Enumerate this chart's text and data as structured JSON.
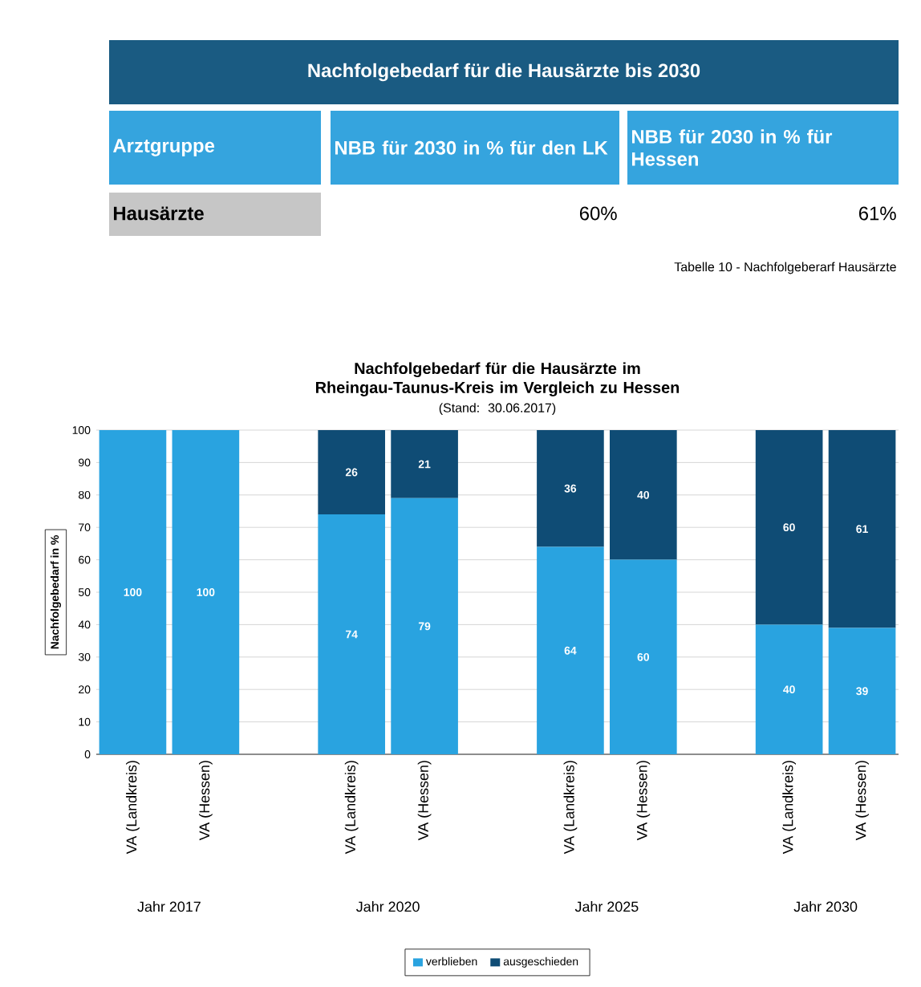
{
  "chart_data": [
    {
      "type": "other",
      "title": "Nachfolgebedarf für die Hausärzte bis 2030",
      "annotations": [
        "Arztgruppe",
        "NBB für 2030 in % für den LK",
        "NBB für 2030 in % für Hessen",
        "Hausärzte",
        "60%",
        "61%",
        "Tabelle 10 - Nachfolgeberarf Hausärzte"
      ]
    },
    {
      "type": "bar",
      "stacked": true,
      "title": "Nachfolgebedarf für die Hausärzte im Rheingau-Taunus-Kreis im Vergleich zu Hessen",
      "subtitle": "(Stand: 30.06.2017)",
      "ylabel": "Nachfolgebedarf in %",
      "categories": [
        "VA (Landkreis)",
        "VA (Hessen)",
        null,
        "VA (Landkreis)",
        "VA (Hessen)",
        null,
        "VA (Landkreis)",
        "VA (Hessen)",
        null,
        "VA (Landkreis)",
        "VA (Hessen)"
      ],
      "series": [
        {
          "name": "verblieben",
          "color": "#29a3e0",
          "values": [
            100,
            100,
            null,
            74,
            79,
            null,
            64,
            60,
            null,
            40,
            39
          ],
          "value_labels": [
            "100",
            "100",
            null,
            "74",
            "79",
            null,
            "64",
            "60",
            null,
            "40",
            "39"
          ]
        },
        {
          "name": "ausgeschieden",
          "color": "#0f4c75",
          "values": [
            0,
            0,
            null,
            26,
            21,
            null,
            36,
            40,
            null,
            60,
            61
          ],
          "value_labels": [
            null,
            null,
            null,
            "26",
            "21",
            null,
            "36",
            "40",
            null,
            "60",
            "61"
          ]
        }
      ],
      "ylim": [
        0,
        100
      ],
      "yticks": [
        0,
        10,
        20,
        30,
        40,
        50,
        60,
        70,
        80,
        90,
        100
      ],
      "grid": "y",
      "legend": "bottom",
      "annotations": [
        "Jahr 2017",
        "Jahr 2020",
        "Jahr 2025",
        "Jahr 2030"
      ]
    }
  ]
}
